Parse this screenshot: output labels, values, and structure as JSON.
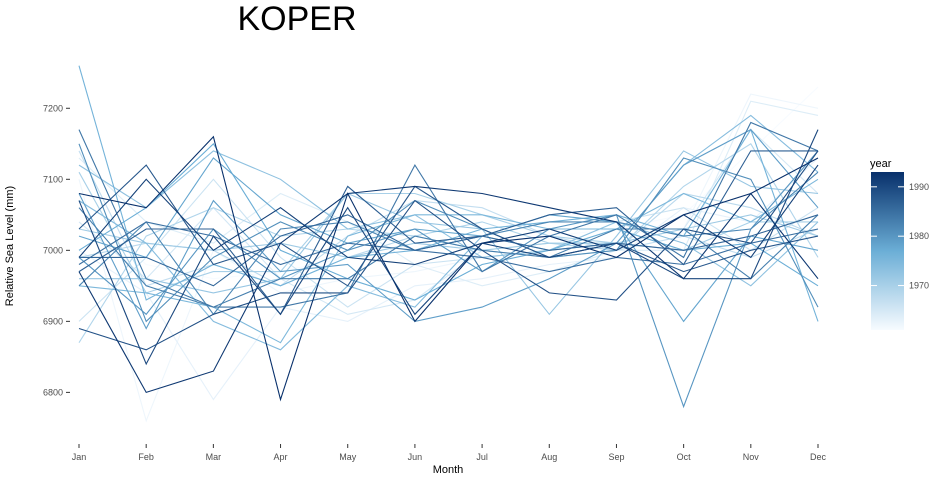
{
  "chart_data": {
    "type": "line",
    "title": "KOPER",
    "xlabel": "Month",
    "ylabel": "Relative Sea Level (mm)",
    "categories": [
      "Jan",
      "Feb",
      "Mar",
      "Apr",
      "May",
      "Jun",
      "Jul",
      "Aug",
      "Sep",
      "Oct",
      "Nov",
      "Dec"
    ],
    "ylim": [
      6740,
      7275
    ],
    "yticks": [
      6800,
      6900,
      7000,
      7100,
      7200
    ],
    "grid": false,
    "legend": {
      "title": "year",
      "position": "right",
      "range": [
        1961,
        1993
      ],
      "ticks": [
        1970,
        1980,
        1990
      ],
      "color_low": "#f7fbff",
      "color_high": "#08306b"
    },
    "series": [
      {
        "year": 1961,
        "values": [
          7060,
          6980,
          6960,
          6970,
          6990,
          7000,
          7010,
          7020,
          7030,
          7050,
          7140,
          7230
        ]
      },
      {
        "year": 1962,
        "values": [
          7100,
          6760,
          7000,
          6940,
          6960,
          6970,
          6990,
          7000,
          7010,
          7030,
          7220,
          7200
        ]
      },
      {
        "year": 1963,
        "values": [
          7000,
          6940,
          6790,
          6920,
          6900,
          6950,
          6960,
          6980,
          6990,
          7060,
          7040,
          7130
        ]
      },
      {
        "year": 1964,
        "values": [
          7130,
          7040,
          7010,
          7080,
          7040,
          6980,
          6950,
          6970,
          7000,
          7000,
          7210,
          7190
        ]
      },
      {
        "year": 1965,
        "values": [
          7040,
          6960,
          7060,
          6960,
          6910,
          6930,
          7000,
          7010,
          7010,
          7030,
          7170,
          7080
        ]
      },
      {
        "year": 1966,
        "values": [
          6900,
          6990,
          7100,
          6990,
          6920,
          6980,
          6990,
          7000,
          7040,
          7060,
          7000,
          7060
        ]
      },
      {
        "year": 1967,
        "values": [
          7140,
          6950,
          6980,
          6950,
          7020,
          7070,
          7060,
          7020,
          7000,
          7020,
          6990,
          7030
        ]
      },
      {
        "year": 1968,
        "values": [
          6990,
          7010,
          7000,
          6950,
          6990,
          7020,
          7000,
          6990,
          7000,
          7080,
          7060,
          7020
        ]
      },
      {
        "year": 1969,
        "values": [
          6870,
          7020,
          7060,
          7020,
          7030,
          7020,
          7040,
          7010,
          7000,
          7090,
          7150,
          6990
        ]
      },
      {
        "year": 1970,
        "values": [
          7110,
          6940,
          6970,
          6970,
          7080,
          7080,
          7050,
          7020,
          7010,
          7000,
          7040,
          7040
        ]
      },
      {
        "year": 1971,
        "values": [
          7030,
          7010,
          7000,
          7010,
          6990,
          7010,
          7000,
          7010,
          7010,
          7030,
          7050,
          7020
        ]
      },
      {
        "year": 1972,
        "values": [
          6960,
          6960,
          6940,
          6960,
          7080,
          7040,
          7030,
          6910,
          7020,
          7140,
          7090,
          7080
        ]
      },
      {
        "year": 1973,
        "values": [
          7120,
          7060,
          7140,
          7100,
          7030,
          7050,
          6990,
          7000,
          7040,
          7010,
          6950,
          7040
        ]
      },
      {
        "year": 1974,
        "values": [
          7070,
          7010,
          6900,
          6860,
          6950,
          6920,
          7020,
          7000,
          7010,
          7120,
          7190,
          7110
        ]
      },
      {
        "year": 1975,
        "values": [
          6950,
          6940,
          6920,
          6870,
          7020,
          7050,
          7050,
          7030,
          7030,
          7080,
          7040,
          7100
        ]
      },
      {
        "year": 1976,
        "values": [
          7260,
          6930,
          6980,
          6950,
          6990,
          7000,
          7030,
          7040,
          7050,
          7020,
          7170,
          6900
        ]
      },
      {
        "year": 1977,
        "values": [
          7000,
          7060,
          7150,
          7000,
          6960,
          6930,
          6980,
          7000,
          7030,
          7000,
          7010,
          6950
        ]
      },
      {
        "year": 1978,
        "values": [
          7020,
          6990,
          7130,
          7050,
          7010,
          7030,
          7020,
          7050,
          7040,
          6900,
          7020,
          7000
        ]
      },
      {
        "year": 1979,
        "values": [
          7080,
          6890,
          7070,
          6970,
          6980,
          6900,
          6920,
          6960,
          7010,
          7120,
          7170,
          7060
        ]
      },
      {
        "year": 1980,
        "values": [
          6990,
          6910,
          7030,
          6960,
          7000,
          7030,
          6970,
          7030,
          7050,
          6780,
          7030,
          7140
        ]
      },
      {
        "year": 1981,
        "values": [
          7150,
          6900,
          6990,
          7040,
          7000,
          7070,
          7030,
          6990,
          7000,
          7130,
          7100,
          6920
        ]
      },
      {
        "year": 1982,
        "values": [
          6950,
          7040,
          6910,
          7030,
          7040,
          7000,
          7020,
          7040,
          7040,
          7020,
          7030,
          7110
        ]
      },
      {
        "year": 1983,
        "values": [
          7060,
          6950,
          6920,
          6960,
          6960,
          7020,
          7000,
          6990,
          7030,
          7030,
          6960,
          7050
        ]
      },
      {
        "year": 1984,
        "values": [
          7170,
          6960,
          6920,
          6920,
          6940,
          7120,
          6970,
          7020,
          7050,
          6990,
          7180,
          7140
        ]
      },
      {
        "year": 1985,
        "values": [
          6980,
          7040,
          7020,
          6980,
          7010,
          7000,
          6990,
          6970,
          6990,
          6980,
          7010,
          7030
        ]
      },
      {
        "year": 1986,
        "values": [
          6990,
          6990,
          6950,
          7020,
          7050,
          7000,
          7020,
          7000,
          7010,
          7000,
          7020,
          7050
        ]
      },
      {
        "year": 1987,
        "values": [
          6970,
          7030,
          7030,
          6910,
          7090,
          7010,
          7020,
          7050,
          7060,
          6980,
          7140,
          7140
        ]
      },
      {
        "year": 1988,
        "values": [
          7030,
          7120,
          6980,
          7010,
          6950,
          7090,
          7030,
          6990,
          7010,
          6970,
          7000,
          7020
        ]
      },
      {
        "year": 1989,
        "values": [
          6890,
          6860,
          6910,
          6940,
          6940,
          7070,
          7000,
          6940,
          6930,
          7030,
          7010,
          7140
        ]
      },
      {
        "year": 1990,
        "values": [
          7070,
          6840,
          7020,
          6910,
          7060,
          6910,
          7010,
          6990,
          7010,
          6960,
          6960,
          7170
        ]
      },
      {
        "year": 1991,
        "values": [
          6990,
          7100,
          7000,
          7060,
          6990,
          6980,
          7010,
          7030,
          7000,
          7050,
          6990,
          7120
        ]
      },
      {
        "year": 1992,
        "values": [
          6970,
          6800,
          6830,
          7010,
          7080,
          7090,
          7080,
          7060,
          7040,
          6960,
          7080,
          6960
        ]
      },
      {
        "year": 1993,
        "values": [
          7080,
          7060,
          7160,
          6790,
          7080,
          6900,
          7010,
          7020,
          6990,
          7050,
          7080,
          7130
        ]
      }
    ]
  }
}
